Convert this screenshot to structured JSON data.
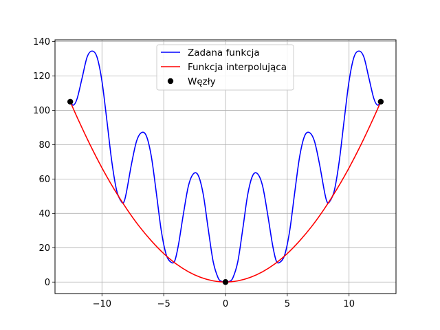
{
  "chart_data": {
    "type": "line",
    "title": "",
    "xlabel": "",
    "ylabel": "",
    "xlim": [
      -13.8,
      13.8
    ],
    "ylim": [
      -6.7,
      141
    ],
    "grid": true,
    "legend_placement": "top-center",
    "x_ticks": [
      -10,
      -5,
      0,
      5,
      10
    ],
    "x_tick_labels": [
      "−10",
      "−5",
      "0",
      "5",
      "10"
    ],
    "y_ticks": [
      0,
      20,
      40,
      60,
      80,
      100,
      120,
      140
    ],
    "y_tick_labels": [
      "0",
      "20",
      "40",
      "60",
      "80",
      "100",
      "120",
      "140"
    ],
    "series": [
      {
        "name": "Zadana funkcja",
        "kind": "line",
        "color": "#0000ff",
        "x": [
          -12.566,
          -12.3,
          -12.0,
          -11.6,
          -11.2,
          -10.8,
          -10.4,
          -10.0,
          -9.6,
          -9.2,
          -8.8,
          -8.4,
          -8.2,
          -8.0,
          -7.6,
          -7.2,
          -6.8,
          -6.4,
          -6.0,
          -5.6,
          -5.2,
          -4.8,
          -4.4,
          -4.1,
          -3.8,
          -3.4,
          -3.0,
          -2.6,
          -2.2,
          -1.8,
          -1.4,
          -1.0,
          -0.6,
          -0.3,
          0.0,
          0.3,
          0.6,
          1.0,
          1.4,
          1.8,
          2.2,
          2.6,
          3.0,
          3.4,
          3.8,
          4.1,
          4.4,
          4.8,
          5.2,
          5.6,
          6.0,
          6.4,
          6.8,
          7.2,
          7.6,
          8.0,
          8.2,
          8.4,
          8.8,
          9.2,
          9.6,
          10.0,
          10.4,
          10.8,
          11.2,
          11.6,
          12.0,
          12.3,
          12.566
        ],
        "y": [
          105,
          103,
          107,
          119,
          131,
          134.5,
          131,
          117,
          94,
          70,
          53,
          46.5,
          47,
          53,
          69,
          82,
          87,
          85,
          73,
          52,
          30,
          16,
          11.5,
          12.5,
          22,
          40,
          56,
          63,
          62,
          51,
          31,
          12,
          2.5,
          0.3,
          0,
          0.3,
          2.5,
          12,
          31,
          51,
          62,
          63,
          56,
          40,
          22,
          12.5,
          11.5,
          16,
          30,
          52,
          73,
          85,
          87,
          82,
          69,
          53,
          47,
          46.5,
          53,
          70,
          94,
          117,
          131,
          134.5,
          131,
          119,
          107,
          103,
          105
        ]
      },
      {
        "name": "Funkcja interpolująca",
        "kind": "line",
        "color": "#ff0000",
        "x": [
          -12.566,
          -12.0,
          -11.0,
          -10.0,
          -9.0,
          -8.0,
          -7.0,
          -6.0,
          -5.0,
          -4.0,
          -3.0,
          -2.0,
          -1.0,
          0.0,
          1.0,
          2.0,
          3.0,
          4.0,
          5.0,
          6.0,
          7.0,
          8.0,
          9.0,
          10.0,
          11.0,
          12.0,
          12.566
        ],
        "y": [
          105,
          95.8,
          80.5,
          66.5,
          53.9,
          42.6,
          32.6,
          24.0,
          16.6,
          10.6,
          6.0,
          2.7,
          0.7,
          0,
          0.7,
          2.7,
          6.0,
          10.6,
          16.6,
          24.0,
          32.6,
          42.6,
          53.9,
          66.5,
          80.5,
          95.8,
          105
        ]
      },
      {
        "name": "Węzły",
        "kind": "scatter",
        "color": "#000000",
        "x": [
          -12.566,
          0.0,
          12.566
        ],
        "y": [
          105,
          0,
          105
        ]
      }
    ]
  }
}
